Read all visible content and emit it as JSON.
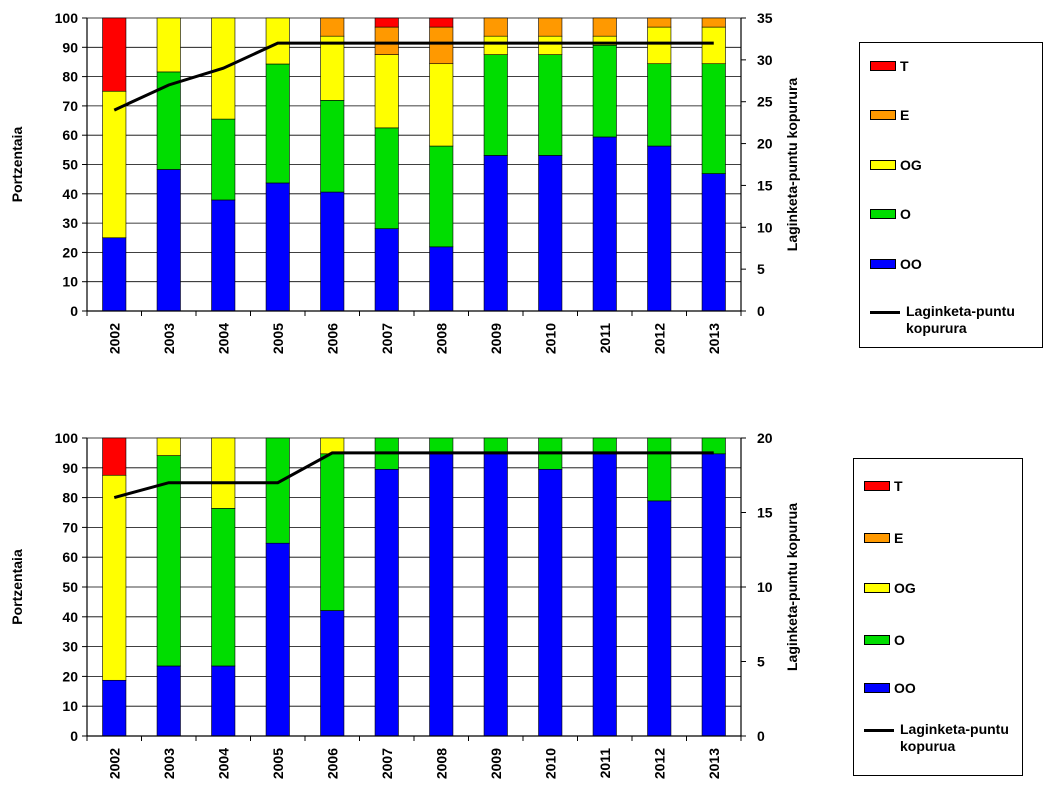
{
  "colors": {
    "T": "#ff0000",
    "E": "#ff9900",
    "OG": "#ffff00",
    "O": "#00dd00",
    "OO": "#0000ff",
    "line": "#000000"
  },
  "chart_data": [
    {
      "type": "bar",
      "stacked": true,
      "title": "",
      "xlabel": "",
      "ylabel": "Portzentaia",
      "y2label": "Laginketa-puntu kopurura",
      "ylim": [
        0,
        100
      ],
      "y2lim": [
        0,
        35
      ],
      "yticks": [
        "0",
        "10",
        "20",
        "30",
        "40",
        "50",
        "60",
        "70",
        "80",
        "90",
        "100"
      ],
      "y2ticks": [
        "0",
        "5",
        "10",
        "15",
        "20",
        "25",
        "30",
        "35"
      ],
      "categories": [
        "2002",
        "2003",
        "2004",
        "2005",
        "2006",
        "2007",
        "2008",
        "2009",
        "2010",
        "2011",
        "2012",
        "2013"
      ],
      "series": [
        {
          "name": "OO",
          "key": "OO",
          "values": [
            25,
            48.3,
            37.9,
            43.7,
            40.6,
            28.1,
            21.9,
            53.1,
            53.1,
            59.4,
            56.3,
            46.9
          ]
        },
        {
          "name": "O",
          "key": "O",
          "values": [
            0,
            33.3,
            27.6,
            40.6,
            31.3,
            34.4,
            34.4,
            34.4,
            34.4,
            31.3,
            28.1,
            37.5
          ]
        },
        {
          "name": "OG",
          "key": "OG",
          "values": [
            50,
            18.4,
            34.5,
            15.7,
            21.9,
            25,
            28.1,
            6.3,
            6.3,
            3.1,
            12.5,
            12.5
          ]
        },
        {
          "name": "E",
          "key": "E",
          "values": [
            0,
            0,
            0,
            0,
            6.2,
            9.4,
            12.5,
            6.2,
            6.2,
            6.2,
            3.1,
            3.1
          ]
        },
        {
          "name": "T",
          "key": "T",
          "values": [
            25,
            0,
            0,
            0,
            0,
            3.1,
            3.1,
            0,
            0,
            0,
            0,
            0
          ]
        }
      ],
      "line": {
        "name": "Laginketa-puntu kopurura",
        "axis": "y2",
        "values": [
          24,
          27,
          29,
          32,
          32,
          32,
          32,
          32,
          32,
          32,
          32,
          32
        ]
      },
      "legend_position": "right",
      "legend": {
        "T": "T",
        "E": "E",
        "OG": "OG",
        "O": "O",
        "OO": "OO",
        "line": "Laginketa-puntu kopurura"
      }
    },
    {
      "type": "bar",
      "stacked": true,
      "title": "",
      "xlabel": "",
      "ylabel": "Portzentaia",
      "y2label": "Laginketa-puntu kopurua",
      "ylim": [
        0,
        100
      ],
      "y2lim": [
        0,
        20
      ],
      "yticks": [
        "0",
        "10",
        "20",
        "30",
        "40",
        "50",
        "60",
        "70",
        "80",
        "90",
        "100"
      ],
      "y2ticks": [
        "0",
        "5",
        "10",
        "15",
        "20"
      ],
      "categories": [
        "2002",
        "2003",
        "2004",
        "2005",
        "2006",
        "2007",
        "2008",
        "2009",
        "2010",
        "2011",
        "2012",
        "2013"
      ],
      "series": [
        {
          "name": "OO",
          "key": "OO",
          "values": [
            18.7,
            23.5,
            23.5,
            64.7,
            42.1,
            89.5,
            94.7,
            94.7,
            89.5,
            94.7,
            78.9,
            94.7
          ]
        },
        {
          "name": "O",
          "key": "O",
          "values": [
            0,
            70.6,
            52.9,
            35.3,
            52.6,
            10.5,
            5.3,
            5.3,
            10.5,
            5.3,
            21.1,
            5.3
          ]
        },
        {
          "name": "OG",
          "key": "OG",
          "values": [
            68.8,
            5.9,
            23.6,
            0,
            5.3,
            0,
            0,
            0,
            0,
            0,
            0,
            0
          ]
        },
        {
          "name": "E",
          "key": "E",
          "values": [
            0,
            0,
            0,
            0,
            0,
            0,
            0,
            0,
            0,
            0,
            0,
            0
          ]
        },
        {
          "name": "T",
          "key": "T",
          "values": [
            12.5,
            0,
            0,
            0,
            0,
            0,
            0,
            0,
            0,
            0,
            0,
            0
          ]
        }
      ],
      "line": {
        "name": "Laginketa-puntu kopurua",
        "axis": "y2",
        "values": [
          16,
          17,
          17,
          17,
          19,
          19,
          19,
          19,
          19,
          19,
          19,
          19
        ]
      },
      "legend_position": "right",
      "legend": {
        "T": "T",
        "E": "E",
        "OG": "OG",
        "O": "O",
        "OO": "OO",
        "line": "Laginketa-puntu kopurua"
      }
    }
  ]
}
